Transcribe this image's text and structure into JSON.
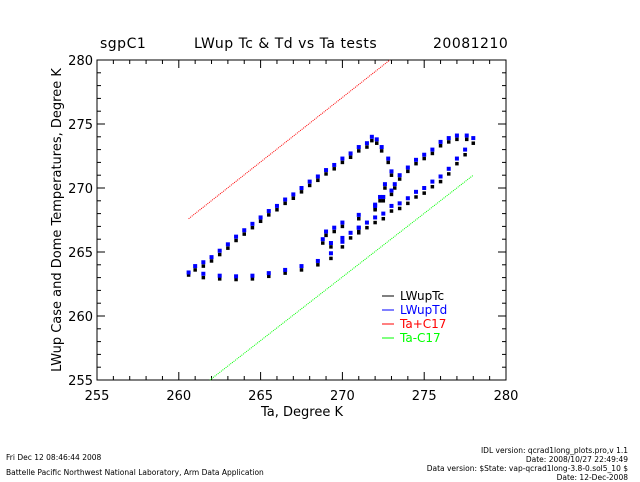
{
  "header": {
    "site": "sgpC1",
    "title": "LWup Tc & Td vs Ta tests",
    "date": "20081210"
  },
  "chart_data": {
    "type": "scatter",
    "title": "LWup Tc & Td vs Ta tests",
    "xlabel": "Ta, Degree K",
    "ylabel": "LWup Case and Dome Temperatures, Degree K",
    "xlim": [
      255,
      280
    ],
    "ylim": [
      255,
      280
    ],
    "xticks": [
      255,
      260,
      265,
      270,
      275,
      280
    ],
    "yticks": [
      255,
      260,
      265,
      270,
      275,
      280
    ],
    "grid": false,
    "legend_position": "lower-right",
    "series": [
      {
        "name": "LWupTc",
        "color": "#000000",
        "points": [
          [
            260.6,
            263.2
          ],
          [
            261.5,
            263.0
          ],
          [
            262.5,
            262.9
          ],
          [
            263.5,
            262.85
          ],
          [
            264.5,
            262.9
          ],
          [
            265.5,
            263.1
          ],
          [
            266.5,
            263.35
          ],
          [
            267.5,
            263.6
          ],
          [
            268.5,
            264.0
          ],
          [
            269.3,
            264.5
          ],
          [
            270.0,
            265.4
          ],
          [
            270.5,
            266.1
          ],
          [
            271.0,
            266.5
          ],
          [
            271.5,
            266.9
          ],
          [
            272.0,
            267.3
          ],
          [
            272.5,
            267.6
          ],
          [
            273.0,
            268.2
          ],
          [
            273.5,
            268.4
          ],
          [
            274.0,
            268.8
          ],
          [
            274.5,
            269.3
          ],
          [
            275.0,
            269.6
          ],
          [
            275.5,
            270.1
          ],
          [
            276.0,
            270.5
          ],
          [
            276.5,
            271.1
          ],
          [
            277.0,
            271.9
          ],
          [
            277.5,
            272.6
          ],
          [
            278.0,
            273.5
          ],
          [
            277.6,
            273.8
          ],
          [
            277.0,
            273.8
          ],
          [
            276.5,
            273.6
          ],
          [
            276.0,
            273.3
          ],
          [
            275.5,
            272.7
          ],
          [
            275.0,
            272.3
          ],
          [
            274.5,
            271.9
          ],
          [
            274.0,
            271.3
          ],
          [
            273.5,
            270.7
          ],
          [
            273.2,
            270.0
          ],
          [
            273.0,
            269.5
          ],
          [
            272.5,
            269.0
          ],
          [
            272.0,
            268.3
          ],
          [
            271.0,
            267.6
          ],
          [
            270.0,
            267.0
          ],
          [
            269.5,
            266.6
          ],
          [
            269.0,
            266.3
          ],
          [
            268.8,
            265.7
          ],
          [
            269.3,
            265.4
          ],
          [
            270.0,
            265.8
          ],
          [
            271.0,
            266.6
          ],
          [
            272.0,
            268.4
          ],
          [
            272.3,
            269.0
          ],
          [
            272.6,
            270.0
          ],
          [
            273.0,
            271.0
          ],
          [
            272.8,
            272.0
          ],
          [
            272.4,
            272.9
          ],
          [
            272.1,
            273.5
          ],
          [
            271.8,
            273.7
          ],
          [
            271.5,
            273.2
          ],
          [
            271.0,
            272.9
          ],
          [
            270.5,
            272.4
          ],
          [
            270.0,
            272.0
          ],
          [
            269.5,
            271.5
          ],
          [
            269.0,
            271.1
          ],
          [
            268.5,
            270.6
          ],
          [
            268.0,
            270.2
          ],
          [
            267.5,
            269.7
          ],
          [
            267.0,
            269.2
          ],
          [
            266.5,
            268.8
          ],
          [
            266.0,
            268.3
          ],
          [
            265.5,
            267.9
          ],
          [
            265.0,
            267.4
          ],
          [
            264.5,
            266.9
          ],
          [
            264.0,
            266.4
          ],
          [
            263.5,
            265.9
          ],
          [
            263.0,
            265.3
          ],
          [
            262.5,
            264.8
          ],
          [
            262.0,
            264.3
          ],
          [
            261.5,
            263.9
          ],
          [
            261.0,
            263.6
          ]
        ]
      },
      {
        "name": "LWupTd",
        "color": "#0000ff",
        "points": [
          [
            260.6,
            263.4
          ],
          [
            261.5,
            263.3
          ],
          [
            262.5,
            263.15
          ],
          [
            263.5,
            263.1
          ],
          [
            264.5,
            263.15
          ],
          [
            265.5,
            263.35
          ],
          [
            266.5,
            263.6
          ],
          [
            267.5,
            263.9
          ],
          [
            268.5,
            264.3
          ],
          [
            269.3,
            264.9
          ],
          [
            270.0,
            265.8
          ],
          [
            270.5,
            266.5
          ],
          [
            271.0,
            266.9
          ],
          [
            271.5,
            267.3
          ],
          [
            272.0,
            267.7
          ],
          [
            272.5,
            268.0
          ],
          [
            273.0,
            268.6
          ],
          [
            273.5,
            268.8
          ],
          [
            274.0,
            269.2
          ],
          [
            274.5,
            269.7
          ],
          [
            275.0,
            270.0
          ],
          [
            275.5,
            270.5
          ],
          [
            276.0,
            270.9
          ],
          [
            276.5,
            271.5
          ],
          [
            277.0,
            272.3
          ],
          [
            277.5,
            273.0
          ],
          [
            278.0,
            273.9
          ],
          [
            277.6,
            274.1
          ],
          [
            277.0,
            274.1
          ],
          [
            276.5,
            273.9
          ],
          [
            276.0,
            273.6
          ],
          [
            275.5,
            273.0
          ],
          [
            275.0,
            272.6
          ],
          [
            274.5,
            272.2
          ],
          [
            274.0,
            271.6
          ],
          [
            273.5,
            271.0
          ],
          [
            273.2,
            270.3
          ],
          [
            273.0,
            269.8
          ],
          [
            272.5,
            269.3
          ],
          [
            272.0,
            268.6
          ],
          [
            271.0,
            267.9
          ],
          [
            270.0,
            267.3
          ],
          [
            269.5,
            266.9
          ],
          [
            269.0,
            266.6
          ],
          [
            268.8,
            266.0
          ],
          [
            269.3,
            265.7
          ],
          [
            270.0,
            266.1
          ],
          [
            271.0,
            266.9
          ],
          [
            272.0,
            268.7
          ],
          [
            272.3,
            269.3
          ],
          [
            272.6,
            270.3
          ],
          [
            273.0,
            271.3
          ],
          [
            272.8,
            272.3
          ],
          [
            272.4,
            273.2
          ],
          [
            272.1,
            273.8
          ],
          [
            271.8,
            274.0
          ],
          [
            271.5,
            273.5
          ],
          [
            271.0,
            273.2
          ],
          [
            270.5,
            272.7
          ],
          [
            270.0,
            272.3
          ],
          [
            269.5,
            271.8
          ],
          [
            269.0,
            271.4
          ],
          [
            268.5,
            270.9
          ],
          [
            268.0,
            270.5
          ],
          [
            267.5,
            270.0
          ],
          [
            267.0,
            269.5
          ],
          [
            266.5,
            269.1
          ],
          [
            266.0,
            268.6
          ],
          [
            265.5,
            268.2
          ],
          [
            265.0,
            267.7
          ],
          [
            264.5,
            267.2
          ],
          [
            264.0,
            266.7
          ],
          [
            263.5,
            266.2
          ],
          [
            263.0,
            265.6
          ],
          [
            262.5,
            265.1
          ],
          [
            262.0,
            264.6
          ],
          [
            261.5,
            264.2
          ],
          [
            261.0,
            263.9
          ]
        ]
      },
      {
        "name": "Ta+C17",
        "color": "#ff0000",
        "points": [
          [
            260.6,
            267.6
          ],
          [
            272.9,
            280
          ]
        ]
      },
      {
        "name": "Ta-C17",
        "color": "#00ff00",
        "points": [
          [
            261.9,
            255
          ],
          [
            278.0,
            271.0
          ]
        ]
      }
    ]
  },
  "footer": {
    "left": [
      "Fri Dec 12 08:46:44 2008",
      "Battelle Pacific Northwest National Laboratory, Arm Data Application"
    ],
    "right": [
      "IDL version: qcrad1long_plots.pro,v 1.1",
      "Date: 2008/10/27 22:49:49",
      "Data version: $State: vap-qcrad1long-3.8-0.sol5_10 $",
      "Date: 12-Dec-2008"
    ]
  }
}
